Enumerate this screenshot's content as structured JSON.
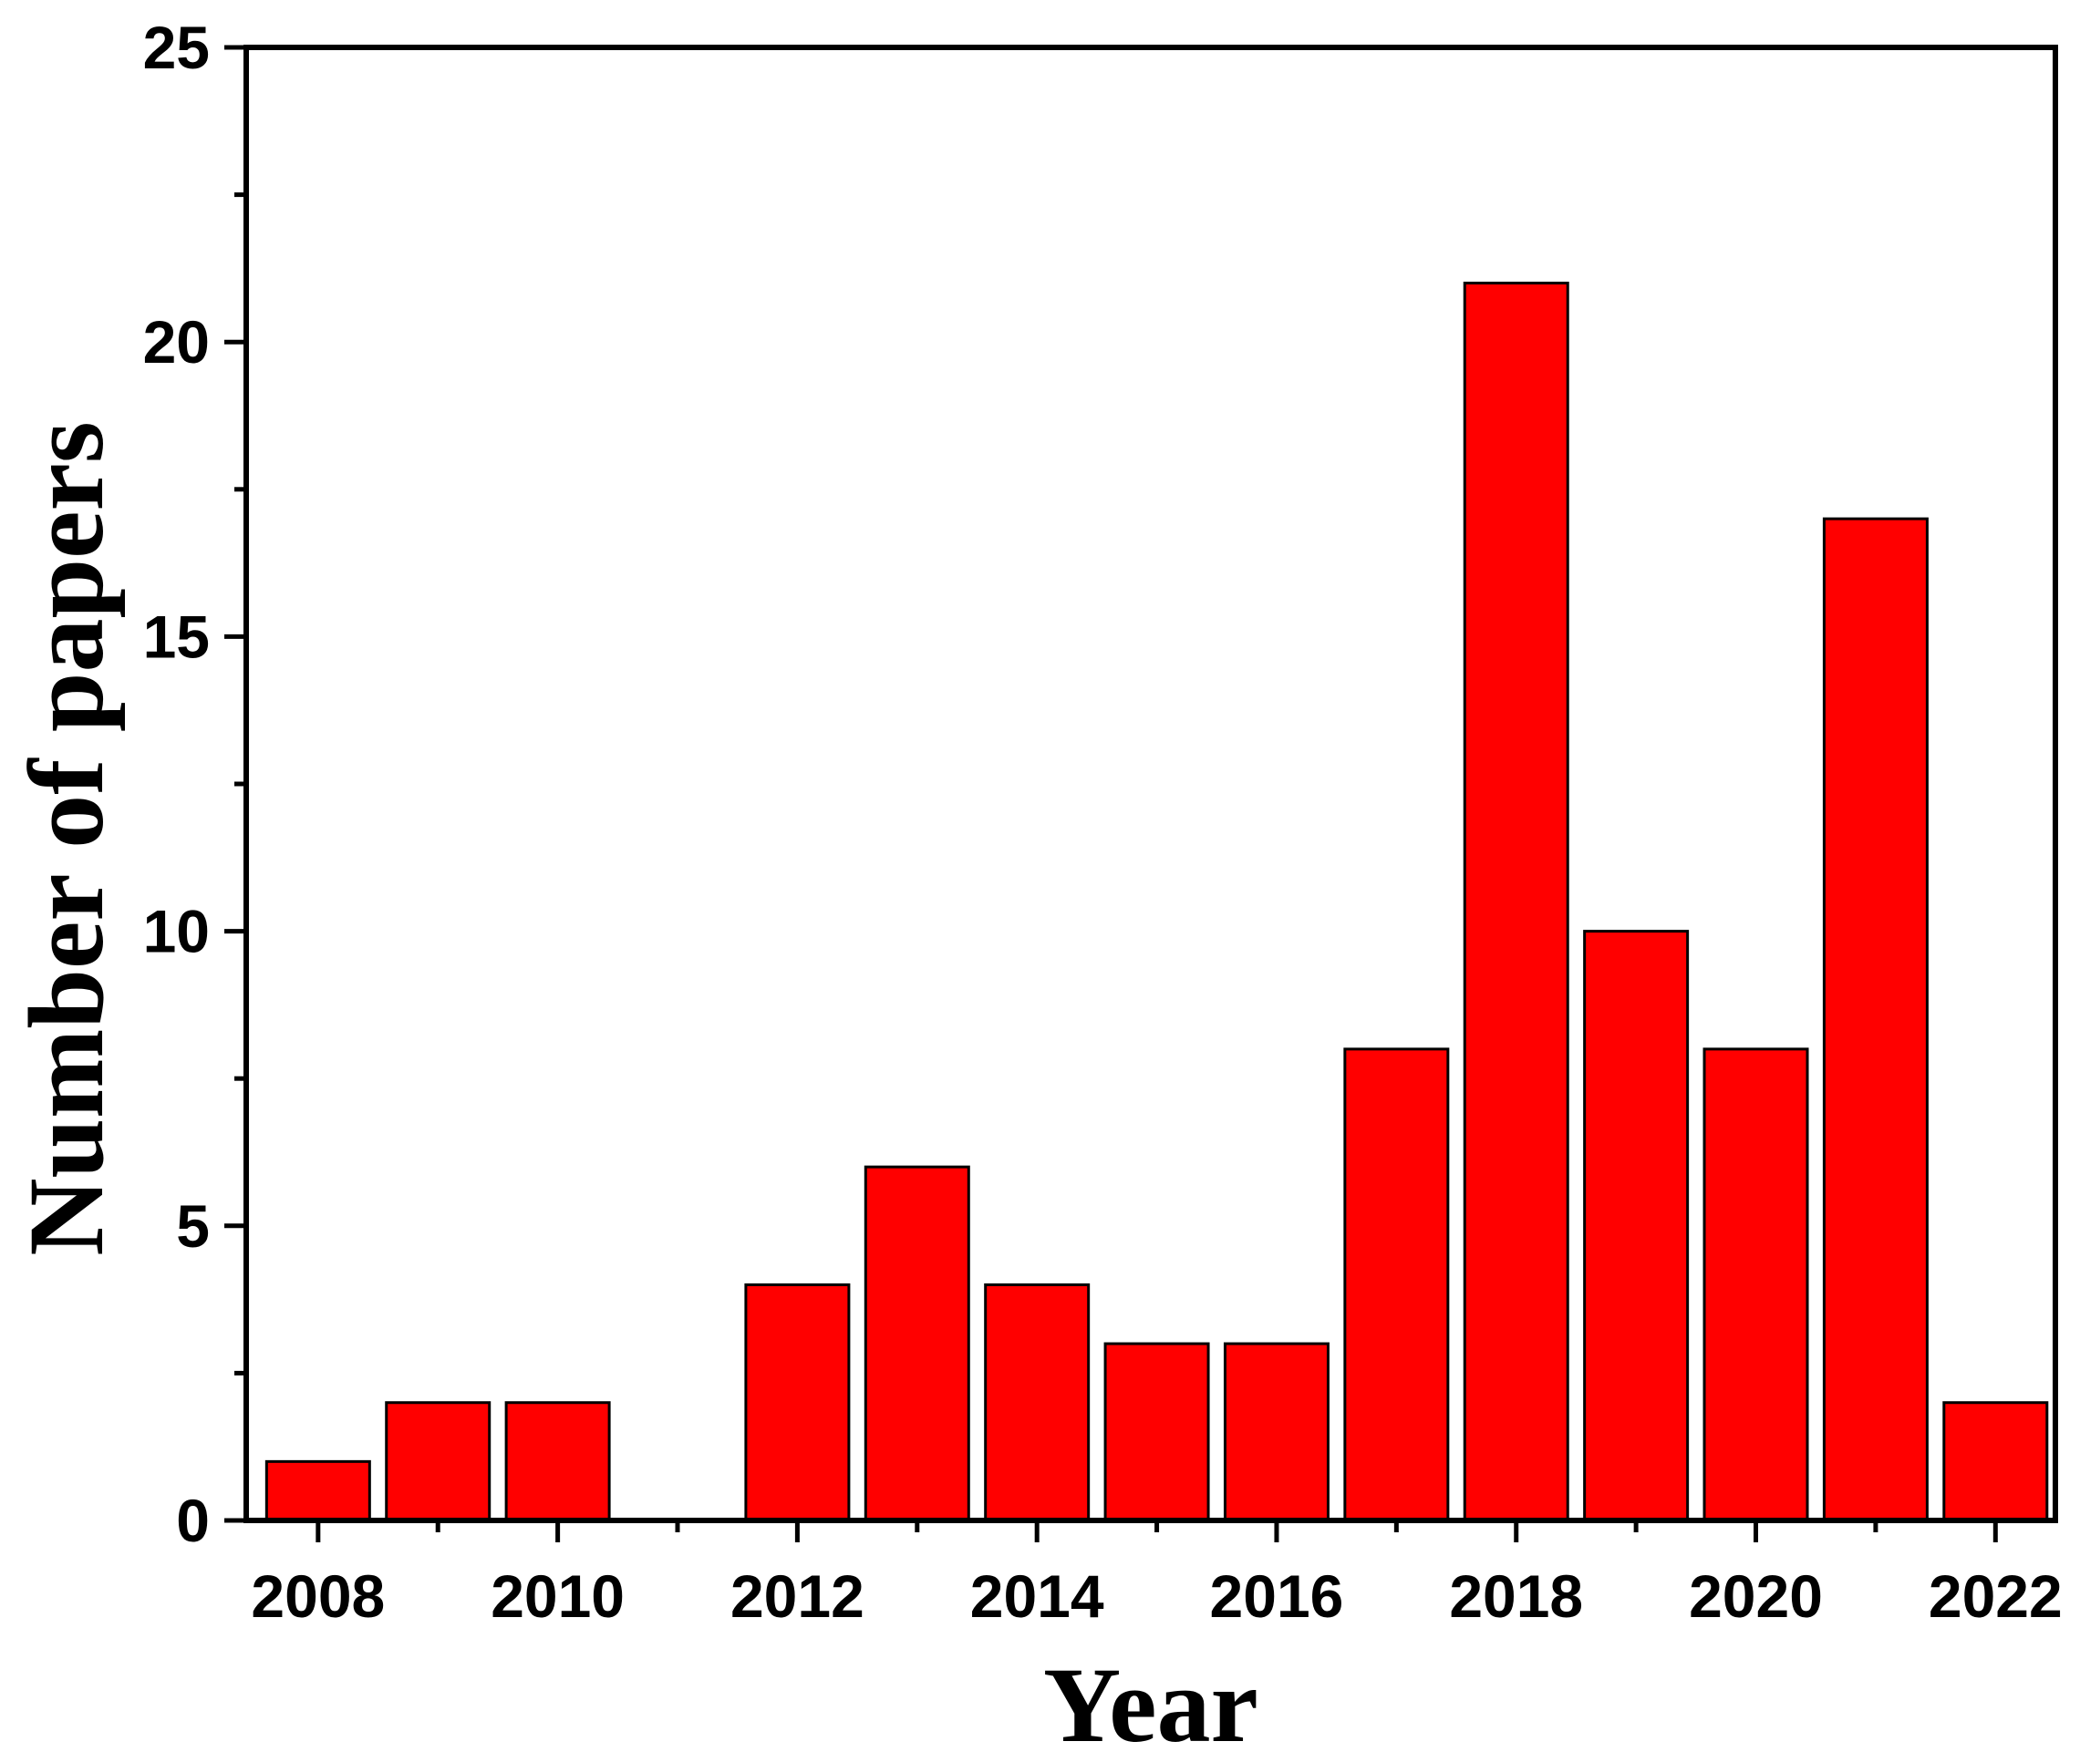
{
  "chart_data": {
    "type": "bar",
    "title": "",
    "xlabel": "Year",
    "ylabel": "Number of papers",
    "x": [
      2008,
      2009,
      2010,
      2011,
      2012,
      2013,
      2014,
      2015,
      2016,
      2017,
      2018,
      2019,
      2020,
      2021,
      2022
    ],
    "values": [
      1,
      2,
      2,
      0,
      4,
      6,
      4,
      3,
      3,
      8,
      21,
      10,
      8,
      17,
      2
    ],
    "xlim": [
      2007.4,
      2022.5
    ],
    "ylim": [
      0,
      25
    ],
    "xticks_labeled": [
      2008,
      2010,
      2012,
      2014,
      2016,
      2018,
      2020,
      2022
    ],
    "yticks_labeled": [
      0,
      5,
      10,
      15,
      20,
      25
    ],
    "bar_color": "#ff0000",
    "edge_color": "#000000",
    "grid": false,
    "legend": "none"
  }
}
